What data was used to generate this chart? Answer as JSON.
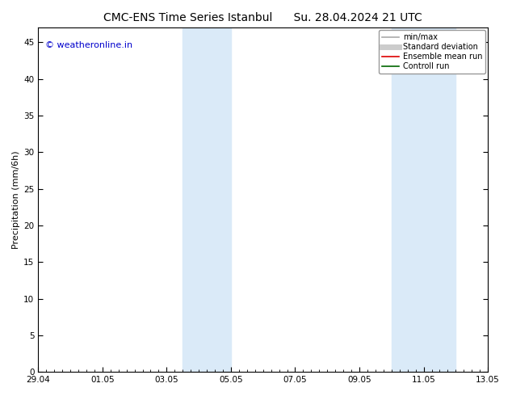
{
  "title_left": "CMC-ENS Time Series Istanbul",
  "title_right": "Su. 28.04.2024 21 UTC",
  "ylabel": "Precipitation (mm/6h)",
  "xlim_start": 0,
  "xlim_end": 14,
  "ylim": [
    0,
    47
  ],
  "yticks": [
    0,
    5,
    10,
    15,
    20,
    25,
    30,
    35,
    40,
    45
  ],
  "xtick_labels": [
    "29.04",
    "01.05",
    "03.05",
    "05.05",
    "07.05",
    "09.05",
    "11.05",
    "13.05"
  ],
  "xtick_positions": [
    0,
    2,
    4,
    6,
    8,
    10,
    12,
    14
  ],
  "watermark": "© weatheronline.in",
  "watermark_color": "#0000cc",
  "bg_color": "#ffffff",
  "plot_bg_color": "#ffffff",
  "shaded_regions": [
    {
      "x_start": 4.5,
      "x_end": 6.0,
      "color": "#daeaf8"
    },
    {
      "x_start": 11.0,
      "x_end": 12.0,
      "color": "#daeaf8"
    },
    {
      "x_start": 12.0,
      "x_end": 13.0,
      "color": "#daeaf8"
    }
  ],
  "legend_entries": [
    {
      "label": "min/max",
      "color": "#aaaaaa",
      "lw": 1.2
    },
    {
      "label": "Standard deviation",
      "color": "#cccccc",
      "lw": 5
    },
    {
      "label": "Ensemble mean run",
      "color": "#dd0000",
      "lw": 1.2
    },
    {
      "label": "Controll run",
      "color": "#006600",
      "lw": 1.2
    }
  ],
  "title_fontsize": 10,
  "axis_fontsize": 8,
  "tick_fontsize": 7.5,
  "watermark_fontsize": 8,
  "legend_fontsize": 7
}
